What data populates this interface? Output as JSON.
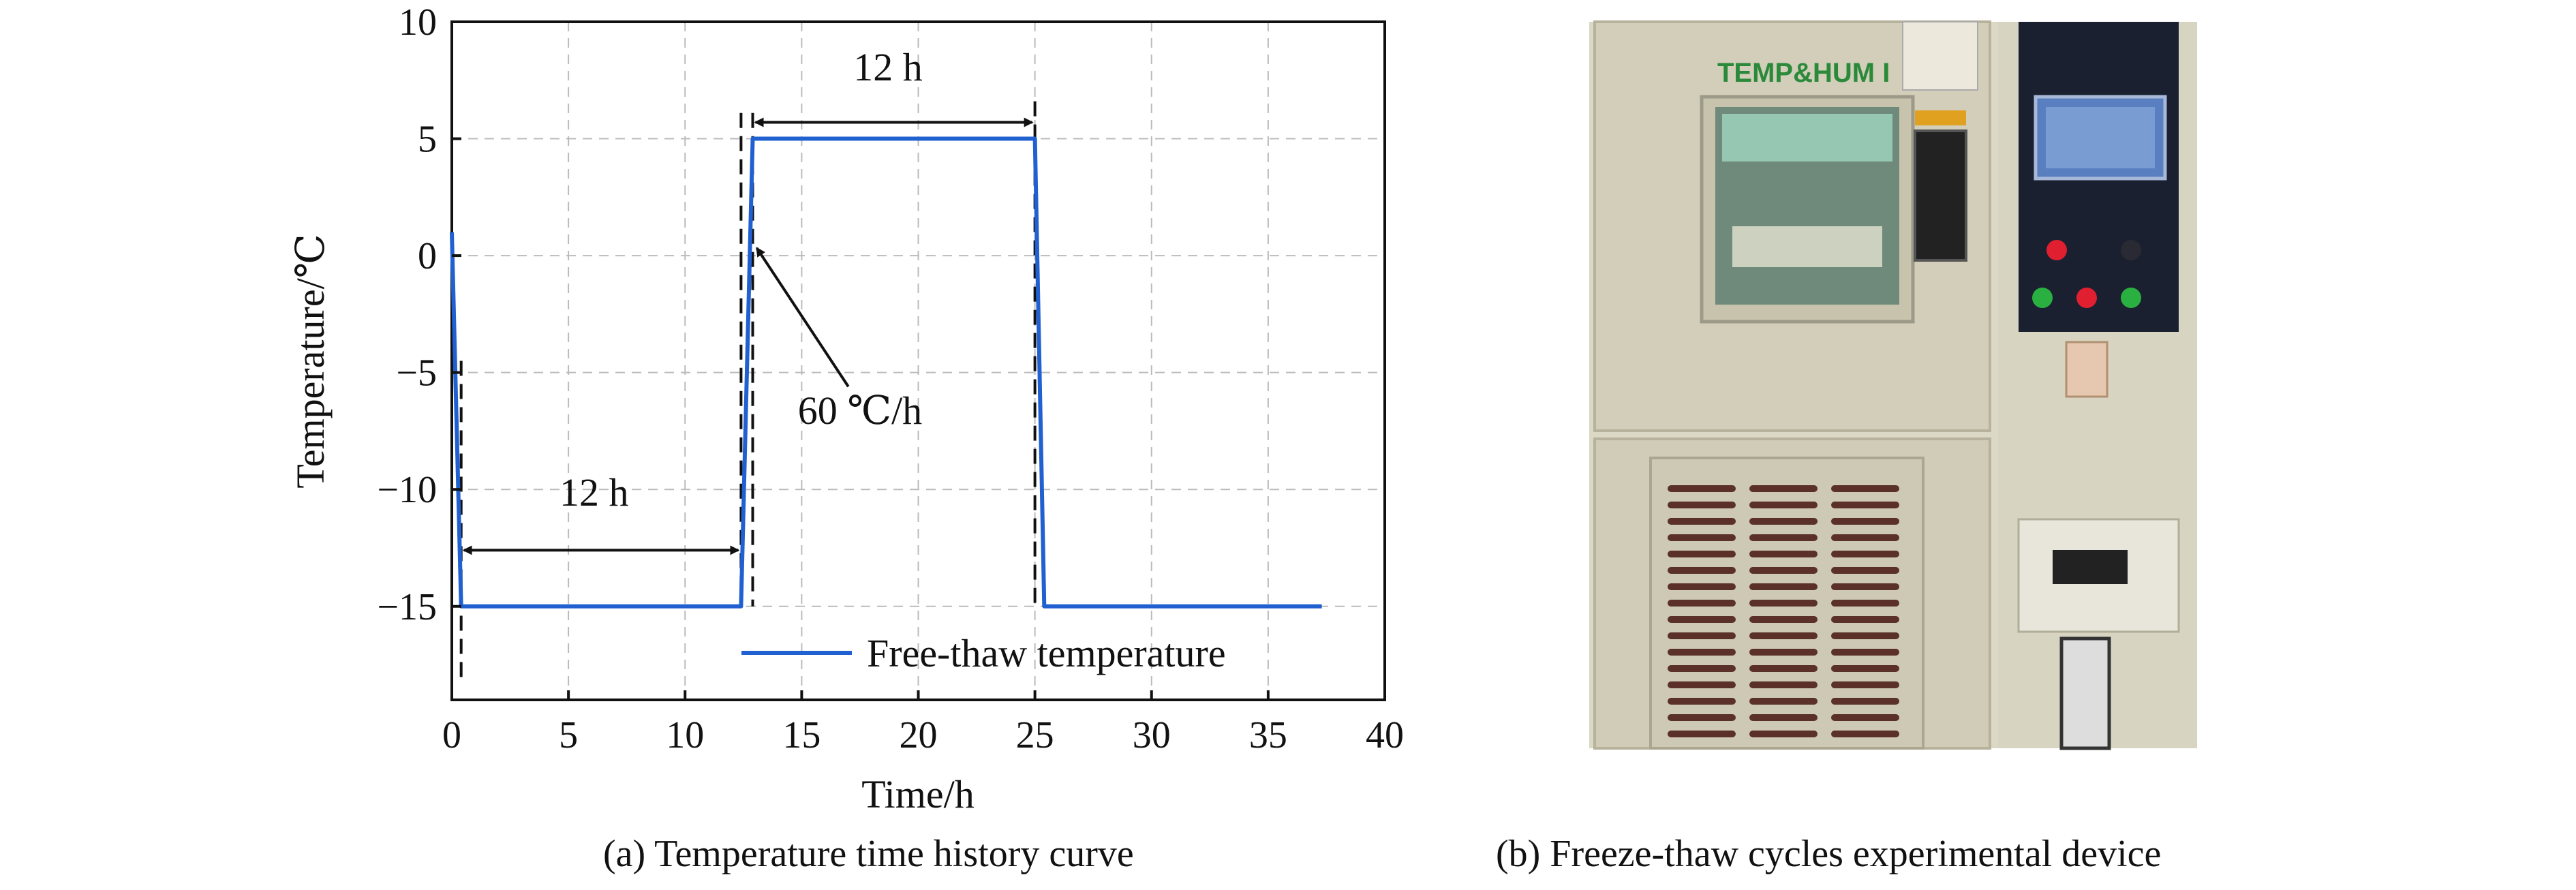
{
  "chart_data": {
    "type": "line",
    "xlabel": "Time/h",
    "ylabel": "Temperature/℃",
    "xlim": [
      0,
      40
    ],
    "ylim": [
      -19,
      10
    ],
    "xticks": [
      0,
      5,
      10,
      15,
      20,
      25,
      30,
      35,
      40
    ],
    "xtick_labels": [
      "0",
      "5",
      "10",
      "15",
      "20",
      "25",
      "30",
      "35",
      "40"
    ],
    "yticks": [
      10,
      5,
      0,
      -5,
      -10,
      -15
    ],
    "ytick_labels": [
      "10",
      "5",
      "0",
      "−5",
      "−10",
      "−15"
    ],
    "grid": true,
    "legend_position": "bottom-right",
    "series": [
      {
        "name": "Free-thaw temperature",
        "color": "#2060d0",
        "x": [
          0,
          0.4,
          12.4,
          12.9,
          25.0,
          25.4,
          37.3
        ],
        "y": [
          1,
          -15,
          -15,
          5,
          5,
          -15,
          -15
        ]
      }
    ],
    "markers": [
      {
        "x": 0.4,
        "ymin": -18.2,
        "ymax": -4.5
      },
      {
        "x": 12.4,
        "ymin": -15,
        "ymax": 6.1
      },
      {
        "x": 12.9,
        "ymin": -15,
        "ymax": 6.1
      },
      {
        "x": 25.0,
        "ymin": -15,
        "ymax": 6.6
      }
    ],
    "annotations": [
      {
        "text": "12 h",
        "x": 6.1,
        "y": -10.7,
        "span": [
          0.4,
          12.4
        ],
        "arrow_y": -12.6
      },
      {
        "text": "12 h",
        "x": 18.7,
        "y": 7.5,
        "span": [
          12.9,
          25.0
        ],
        "arrow_y": 5.7
      },
      {
        "text": "60 ℃/h",
        "x": 17.5,
        "y": -7.2,
        "arrow_from": [
          17.0,
          -5.6
        ],
        "arrow_to": [
          12.9,
          0.5
        ]
      }
    ]
  },
  "captions": {
    "a": "(a) Temperature time history curve",
    "b": "(b) Freeze-thaw cycles experimental device"
  },
  "photo": {
    "chamber_label": "TEMP&HUM I"
  }
}
